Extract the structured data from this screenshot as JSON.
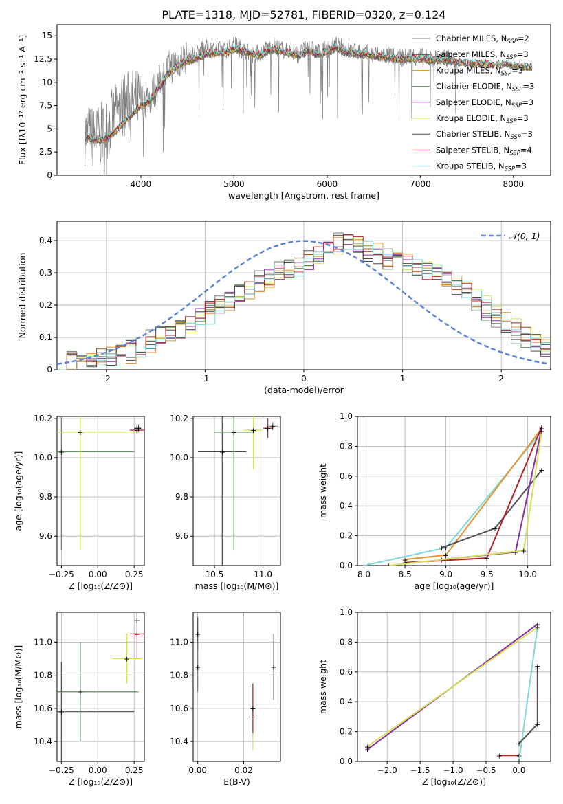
{
  "figure": {
    "title": "PLATE=1318, MJD=52781, FIBERID=0320, z=0.124"
  },
  "models": [
    {
      "name": "Chabrier MILES",
      "nssp": "2",
      "color": "#7f7f7f"
    },
    {
      "name": "Salpeter MILES",
      "nssp": "3",
      "color": "#4b4b4b"
    },
    {
      "name": "Kroupa MILES",
      "nssp": "3",
      "color": "#e8922c"
    },
    {
      "name": "Chabrier ELODIE",
      "nssp": "3",
      "color": "#5b8a5b"
    },
    {
      "name": "Salpeter ELODIE",
      "nssp": "3",
      "color": "#8b2fa0"
    },
    {
      "name": "Kroupa ELODIE",
      "nssp": "3",
      "color": "#d4e157"
    },
    {
      "name": "Chabrier STELIB",
      "nssp": "3",
      "color": "#505050"
    },
    {
      "name": "Salpeter STELIB",
      "nssp": "4",
      "color": "#b22222"
    },
    {
      "name": "Kroupa STELIB",
      "nssp": "3",
      "color": "#7fd8d8"
    }
  ],
  "chart_data": [
    {
      "id": "spectrum",
      "type": "line",
      "xlabel": "wavelength [Angstrom, rest frame]",
      "ylabel": "Flux [fλ10⁻¹⁷ erg cm⁻² s⁻¹ A⁻¹]",
      "xlim": [
        3100,
        8400
      ],
      "ylim": [
        0,
        16.2
      ],
      "xticks": [
        4000,
        5000,
        6000,
        7000,
        8000
      ],
      "yticks": [
        0.0,
        2.5,
        5.0,
        7.5,
        10.0,
        12.5,
        15.0
      ],
      "legend": "top-right",
      "series": [
        {
          "name": "data",
          "x": [
            3400,
            3500,
            3600,
            3700,
            3800,
            3900,
            4000,
            4100,
            4200,
            4300,
            4400,
            4500,
            4600,
            4700,
            4800,
            4900,
            5000,
            5100,
            5200,
            5300,
            5400,
            5500,
            5600,
            5700,
            5800,
            5900,
            6000,
            6100,
            6200,
            6300,
            6400,
            6500,
            6600,
            6700,
            6800,
            6900,
            7000,
            7100,
            7200,
            7300,
            7400
          ],
          "y": [
            4.5,
            4.0,
            4.5,
            6.0,
            7.5,
            8.0,
            8.0,
            8.5,
            10.0,
            11.5,
            12.3,
            12.8,
            13.0,
            13.8,
            13.5,
            13.4,
            14.0,
            13.5,
            13.0,
            13.2,
            14.0,
            13.6,
            13.3,
            13.0,
            13.8,
            13.2,
            13.6,
            14.0,
            13.5,
            13.3,
            13.2,
            13.0,
            12.9,
            12.8,
            12.6,
            12.8,
            12.7,
            12.5,
            12.6,
            12.5,
            12.3
          ]
        },
        {
          "name": "model",
          "x": [
            3400,
            3500,
            3600,
            3700,
            3800,
            3900,
            4000,
            4100,
            4200,
            4300,
            4400,
            4500,
            4600,
            4700,
            4800,
            4900,
            5000,
            5100,
            5200,
            5300,
            5400,
            5500,
            5600,
            5700,
            5800,
            5900,
            6000,
            6100,
            6200,
            6300,
            6400,
            6500,
            6600,
            6700,
            6800,
            6900,
            7000,
            7100,
            7200,
            7300,
            7400,
            7500,
            7600,
            7700,
            7800,
            7900,
            8000,
            8100,
            8200
          ],
          "y": [
            4.2,
            3.9,
            3.8,
            4.5,
            5.5,
            6.5,
            7.5,
            8.0,
            9.5,
            11.0,
            11.8,
            12.3,
            12.6,
            13.0,
            13.2,
            13.2,
            13.6,
            13.4,
            13.0,
            13.0,
            13.6,
            13.4,
            13.1,
            12.9,
            13.4,
            13.0,
            13.3,
            13.7,
            13.3,
            13.1,
            13.0,
            12.8,
            12.7,
            12.6,
            12.5,
            12.6,
            12.5,
            12.4,
            12.4,
            12.3,
            12.2,
            12.1,
            12.0,
            12.0,
            11.9,
            12.0,
            11.8,
            11.7,
            11.6
          ]
        }
      ]
    },
    {
      "id": "residuals",
      "type": "line",
      "xlabel": "(data-model)/error",
      "ylabel": "Normed distribution",
      "xlim": [
        -2.5,
        2.5
      ],
      "ylim": [
        0,
        0.46
      ],
      "xticks": [
        -2,
        -1,
        0,
        1,
        2
      ],
      "yticks": [
        0.0,
        0.1,
        0.2,
        0.3,
        0.4
      ],
      "legend": "top-right",
      "series": [
        {
          "name": "𝒩(0, 1)",
          "style": "dashed",
          "color": "#5b84d6"
        },
        {
          "name": "histogram",
          "x": [
            -2.5,
            -2.2,
            -2.0,
            -1.8,
            -1.6,
            -1.4,
            -1.2,
            -1.0,
            -0.8,
            -0.6,
            -0.4,
            -0.2,
            0.0,
            0.2,
            0.4,
            0.6,
            0.8,
            1.0,
            1.2,
            1.4,
            1.6,
            1.8,
            2.0,
            2.2,
            2.5
          ],
          "y": [
            0.02,
            0.03,
            0.04,
            0.05,
            0.08,
            0.11,
            0.13,
            0.17,
            0.21,
            0.24,
            0.28,
            0.31,
            0.33,
            0.36,
            0.4,
            0.38,
            0.35,
            0.33,
            0.31,
            0.29,
            0.25,
            0.2,
            0.15,
            0.11,
            0.06
          ]
        }
      ]
    },
    {
      "id": "age-vs-Z",
      "type": "scatter",
      "xlabel": "Z [log₁₀(Z/Z⊙)]",
      "ylabel": "age  [log₁₀(age/yr)]",
      "xlim": [
        -0.28,
        0.32
      ],
      "ylim": [
        9.45,
        10.21
      ],
      "xticks": [
        "−0.25",
        "0.00",
        "0.25"
      ],
      "yticks": [
        "9.6",
        "9.8",
        "10.0",
        "10.2"
      ],
      "x": [
        0.27,
        -0.25,
        -0.12,
        0.27,
        0.28
      ],
      "y": [
        10.15,
        10.03,
        10.13,
        10.14,
        10.15
      ]
    },
    {
      "id": "age-vs-mass",
      "type": "scatter",
      "xlabel": "mass [log₁₀(M/M⊙)]",
      "ylabel": "",
      "xlim": [
        10.28,
        11.18
      ],
      "ylim": [
        9.45,
        10.21
      ],
      "xticks": [
        "10.5",
        "11.0"
      ],
      "yticks": [
        "9.6",
        "9.8",
        "10.0",
        "10.2"
      ],
      "x": [
        10.58,
        10.7,
        10.9,
        11.05,
        11.1
      ],
      "y": [
        10.03,
        10.13,
        10.14,
        10.15,
        10.16
      ]
    },
    {
      "id": "massweight-vs-age",
      "type": "line",
      "xlabel": "age  [log₁₀(age/yr)]",
      "ylabel": "mass weight",
      "xlim": [
        7.92,
        10.28
      ],
      "ylim": [
        0,
        1.0
      ],
      "xticks": [
        "8.0",
        "8.5",
        "9.0",
        "9.5",
        "10.0"
      ],
      "yticks": [
        "0.0",
        "0.2",
        "0.4",
        "0.6",
        "0.8",
        "1.0"
      ],
      "series": [
        {
          "name": "Kroupa STELIB",
          "x": [
            8.0,
            9.0,
            10.17
          ],
          "y": [
            0.0,
            0.12,
            0.9
          ]
        },
        {
          "name": "Kroupa MILES",
          "x": [
            8.5,
            9.0,
            10.17
          ],
          "y": [
            0.04,
            0.07,
            0.92
          ]
        },
        {
          "name": "Chabrier STELIB",
          "x": [
            8.95,
            9.6,
            10.17
          ],
          "y": [
            0.12,
            0.25,
            0.64
          ]
        },
        {
          "name": "Salpeter STELIB",
          "x": [
            8.5,
            9.5,
            10.17
          ],
          "y": [
            0.02,
            0.05,
            0.93
          ]
        },
        {
          "name": "Salpeter ELODIE",
          "x": [
            8.95,
            9.85,
            10.17
          ],
          "y": [
            0.04,
            0.09,
            0.92
          ]
        },
        {
          "name": "Kroupa ELODIE",
          "x": [
            8.3,
            9.95,
            10.17
          ],
          "y": [
            0.0,
            0.1,
            0.9
          ]
        }
      ]
    },
    {
      "id": "mass-vs-Z",
      "type": "scatter",
      "xlabel": "Z [log₁₀(Z/Z⊙)]",
      "ylabel": "mass [log₁₀(M/M⊙)]",
      "xlim": [
        -0.28,
        0.32
      ],
      "ylim": [
        10.28,
        11.18
      ],
      "xticks": [
        "−0.25",
        "0.00",
        "0.25"
      ],
      "yticks": [
        "10.4",
        "10.6",
        "10.8",
        "11.0"
      ],
      "x": [
        -0.25,
        -0.12,
        0.2,
        0.27,
        0.27
      ],
      "y": [
        10.58,
        10.7,
        10.9,
        11.05,
        11.13
      ]
    },
    {
      "id": "mass-vs-EBV",
      "type": "scatter",
      "xlabel": "E(B-V)",
      "ylabel": "",
      "xlim": [
        -0.002,
        0.036
      ],
      "ylim": [
        10.28,
        11.18
      ],
      "xticks": [
        "0.00",
        "0.02"
      ],
      "yticks": [
        "10.4",
        "10.6",
        "10.8",
        "11.0"
      ],
      "x": [
        0.0,
        0.0,
        0.024,
        0.024,
        0.033
      ],
      "y": [
        11.05,
        10.85,
        10.55,
        10.6,
        10.85
      ]
    },
    {
      "id": "massweight-vs-Z",
      "type": "line",
      "xlabel": "Z [log₁₀(Z/Z⊙)]",
      "ylabel": "mass weight",
      "xlim": [
        -2.45,
        0.48
      ],
      "ylim": [
        0,
        1.0
      ],
      "xticks": [
        "−2.0",
        "−1.5",
        "−1.0",
        "−0.5",
        "0.0"
      ],
      "yticks": [
        "0.0",
        "0.2",
        "0.4",
        "0.6",
        "0.8",
        "1.0"
      ],
      "series": [
        {
          "name": "Salpeter ELODIE",
          "x": [
            -2.3,
            0.28
          ],
          "y": [
            0.08,
            0.92
          ]
        },
        {
          "name": "Kroupa ELODIE",
          "x": [
            -2.3,
            0.28
          ],
          "y": [
            0.1,
            0.9
          ]
        },
        {
          "name": "Salpeter STELIB",
          "x": [
            -0.3,
            0.0
          ],
          "y": [
            0.04,
            0.04
          ]
        },
        {
          "name": "Kroupa STELIB",
          "x": [
            0.0,
            0.28
          ],
          "y": [
            0.0,
            0.9
          ]
        },
        {
          "name": "Chabrier STELIB",
          "x": [
            0.0,
            0.28,
            0.28
          ],
          "y": [
            0.12,
            0.25,
            0.64
          ]
        }
      ]
    }
  ]
}
